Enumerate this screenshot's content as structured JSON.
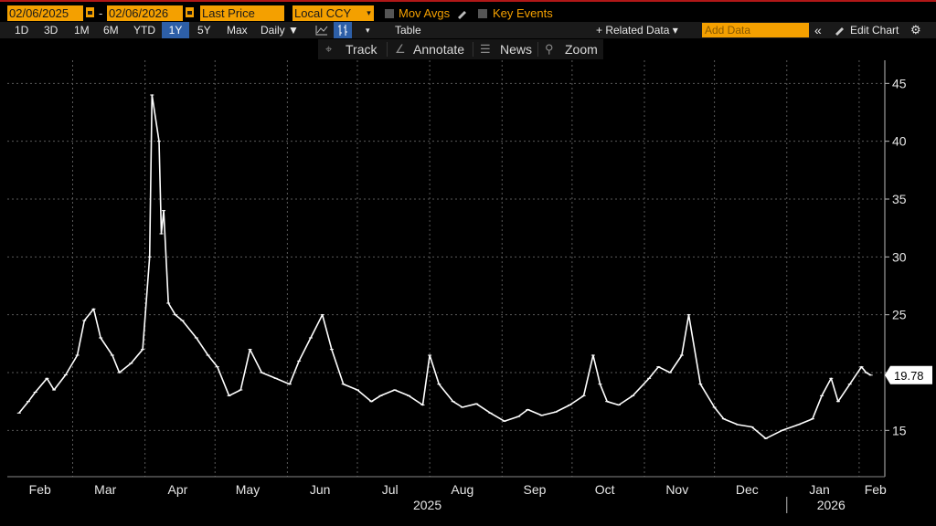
{
  "header": {
    "start_date": "02/06/2025",
    "end_date": "02/06/2026",
    "price_field": "Last Price",
    "currency": "Local CCY",
    "mov_avgs_label": "Mov Avgs",
    "key_events_label": "Key Events"
  },
  "toolbar": {
    "periods": [
      "1D",
      "3D",
      "1M",
      "6M",
      "YTD",
      "1Y",
      "5Y",
      "Max"
    ],
    "selected_period": "1Y",
    "frequency": "Daily ▼",
    "table_label": "Table",
    "related_data_label": "+ Related Data ▾",
    "add_data_placeholder": "Add Data",
    "edit_chart_label": "Edit Chart"
  },
  "chart_tools": {
    "track": "Track",
    "annotate": "Annotate",
    "news": "News",
    "zoom": "Zoom"
  },
  "colors": {
    "accent": "#f4a000",
    "selected": "#2d5fa8",
    "background": "#000000",
    "series": "#ffffff",
    "top_border": "#b01717"
  },
  "chart_data": {
    "type": "line",
    "title": "",
    "xlabel": "",
    "ylabel": "",
    "x_ticks": [
      "Feb",
      "Mar",
      "Apr",
      "May",
      "Jun",
      "Jul",
      "Aug",
      "Sep",
      "Oct",
      "Nov",
      "Dec",
      "Jan",
      "Feb"
    ],
    "year_labels": [
      "2025",
      "2026"
    ],
    "y_ticks": [
      15,
      20,
      25,
      30,
      35,
      40,
      45
    ],
    "ylim": [
      11,
      47
    ],
    "last_value": "19.78",
    "grid": true,
    "series": [
      {
        "x": [
          "2025-02-06",
          "2025-02-10",
          "2025-02-13",
          "2025-02-18",
          "2025-02-21",
          "2025-02-26",
          "2025-03-03",
          "2025-03-06",
          "2025-03-10",
          "2025-03-13",
          "2025-03-18",
          "2025-03-21",
          "2025-03-26",
          "2025-03-31",
          "2025-04-03",
          "2025-04-04",
          "2025-04-07",
          "2025-04-08",
          "2025-04-09",
          "2025-04-11",
          "2025-04-14",
          "2025-04-17",
          "2025-04-23",
          "2025-04-28",
          "2025-05-02",
          "2025-05-07",
          "2025-05-12",
          "2025-05-16",
          "2025-05-21",
          "2025-05-27",
          "2025-06-02",
          "2025-06-06",
          "2025-06-11",
          "2025-06-16",
          "2025-06-20",
          "2025-06-25",
          "2025-07-01",
          "2025-07-07",
          "2025-07-11",
          "2025-07-17",
          "2025-07-23",
          "2025-07-29",
          "2025-08-01",
          "2025-08-05",
          "2025-08-11",
          "2025-08-15",
          "2025-08-21",
          "2025-08-27",
          "2025-09-02",
          "2025-09-08",
          "2025-09-12",
          "2025-09-18",
          "2025-09-24",
          "2025-09-30",
          "2025-10-06",
          "2025-10-10",
          "2025-10-13",
          "2025-10-16",
          "2025-10-21",
          "2025-10-27",
          "2025-11-03",
          "2025-11-07",
          "2025-11-12",
          "2025-11-17",
          "2025-11-20",
          "2025-11-25",
          "2025-12-01",
          "2025-12-05",
          "2025-12-11",
          "2025-12-17",
          "2025-12-23",
          "2025-12-30",
          "2026-01-06",
          "2026-01-12",
          "2026-01-16",
          "2026-01-20",
          "2026-01-23",
          "2026-01-28",
          "2026-02-02",
          "2026-02-04",
          "2026-02-06"
        ],
        "y": [
          16.5,
          17.5,
          18.3,
          19.5,
          18.5,
          19.8,
          21.5,
          24.5,
          25.5,
          23.0,
          21.5,
          20.0,
          20.8,
          22.0,
          30.0,
          44.0,
          40.0,
          32.0,
          34.0,
          26.0,
          25.0,
          24.5,
          23.0,
          21.5,
          20.5,
          18.0,
          18.5,
          22.0,
          20.0,
          19.5,
          19.0,
          21.0,
          23.0,
          25.0,
          22.0,
          19.0,
          18.5,
          17.5,
          18.0,
          18.5,
          18.0,
          17.2,
          21.5,
          19.0,
          17.5,
          17.0,
          17.3,
          16.5,
          15.8,
          16.2,
          16.8,
          16.3,
          16.6,
          17.2,
          18.0,
          21.5,
          19.0,
          17.5,
          17.2,
          18.0,
          19.5,
          20.5,
          20.0,
          21.5,
          25.0,
          19.0,
          17.0,
          16.0,
          15.5,
          15.3,
          14.3,
          15.0,
          15.5,
          16.0,
          18.0,
          19.5,
          17.5,
          19.0,
          20.5,
          20.0,
          19.78
        ]
      }
    ]
  }
}
